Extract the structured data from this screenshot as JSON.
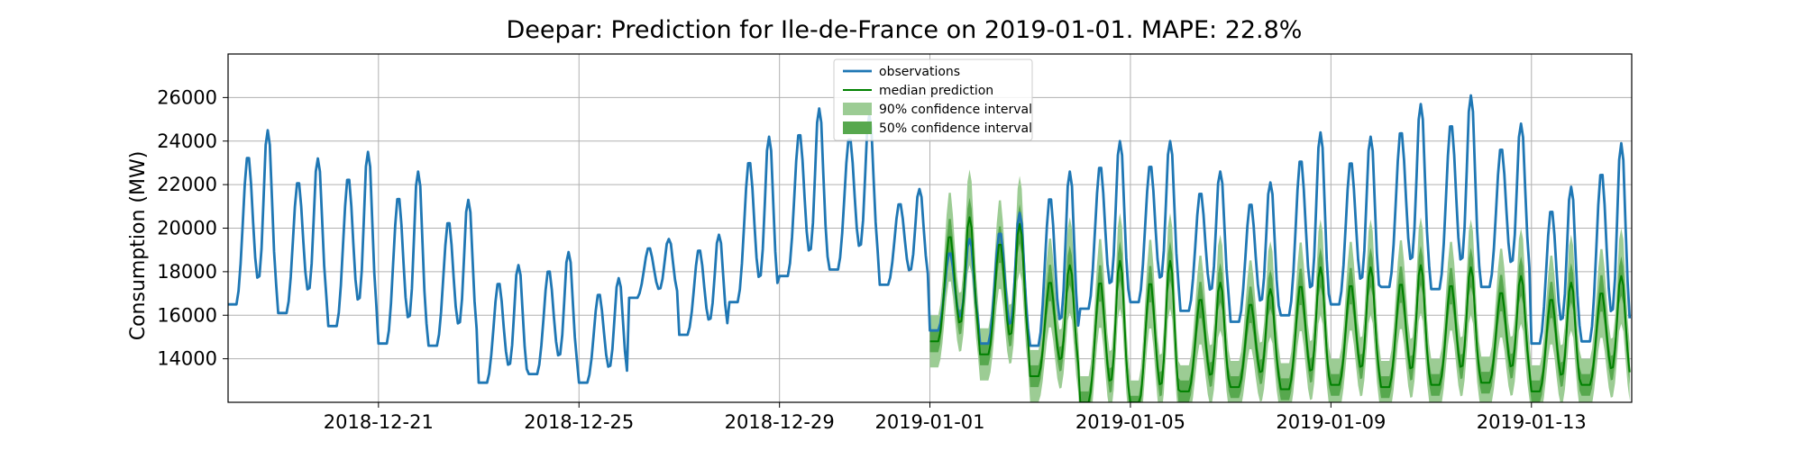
{
  "chart_data": {
    "type": "line",
    "title": "Deepar: Prediction for Ile-de-France on 2019-01-01. MAPE: 22.8%",
    "xlabel": "",
    "ylabel": "Consumption (MW)",
    "x_unit": "date",
    "xlim": [
      "2018-12-18",
      "2019-01-15"
    ],
    "ylim": [
      12000,
      28000
    ],
    "yticks": [
      14000,
      16000,
      18000,
      20000,
      22000,
      24000,
      26000
    ],
    "xticks": [
      "2018-12-21",
      "2018-12-25",
      "2018-12-29",
      "2019-01-01",
      "2019-01-05",
      "2019-01-09",
      "2019-01-13"
    ],
    "grid": true,
    "legend_position": "top-center",
    "legend": [
      {
        "label": "observations",
        "kind": "line",
        "color": "#1f77b4"
      },
      {
        "label": "median prediction",
        "kind": "line",
        "color": "#008000"
      },
      {
        "label": "90% confidence interval",
        "kind": "patch",
        "color": "#9ccc94"
      },
      {
        "label": "50% confidence interval",
        "kind": "patch",
        "color": "#57a84e"
      }
    ],
    "observations": {
      "color": "#1f77b4",
      "daily": [
        {
          "date": "2018-12-18",
          "min": 16500,
          "max": 24500
        },
        {
          "date": "2018-12-19",
          "min": 16100,
          "max": 23200
        },
        {
          "date": "2018-12-20",
          "min": 15500,
          "max": 23500
        },
        {
          "date": "2018-12-21",
          "min": 14700,
          "max": 22600
        },
        {
          "date": "2018-12-22",
          "min": 14600,
          "max": 21300
        },
        {
          "date": "2018-12-23",
          "min": 12900,
          "max": 18300
        },
        {
          "date": "2018-12-24",
          "min": 13300,
          "max": 18900
        },
        {
          "date": "2018-12-25",
          "min": 12900,
          "max": 17700
        },
        {
          "date": "2018-12-26",
          "min": 16800,
          "max": 19500
        },
        {
          "date": "2018-12-27",
          "min": 15100,
          "max": 19700
        },
        {
          "date": "2018-12-28",
          "min": 16600,
          "max": 24200
        },
        {
          "date": "2018-12-29",
          "min": 17800,
          "max": 25500
        },
        {
          "date": "2018-12-30",
          "min": 18100,
          "max": 25200
        },
        {
          "date": "2018-12-31",
          "min": 17400,
          "max": 21800
        },
        {
          "date": "2019-01-01",
          "min": 15300,
          "max": 19500
        },
        {
          "date": "2019-01-02",
          "min": 14700,
          "max": 20700
        },
        {
          "date": "2019-01-03",
          "min": 14600,
          "max": 22600
        },
        {
          "date": "2019-01-04",
          "min": 16300,
          "max": 24000
        },
        {
          "date": "2019-01-05",
          "min": 16600,
          "max": 24000
        },
        {
          "date": "2019-01-06",
          "min": 16200,
          "max": 22600
        },
        {
          "date": "2019-01-07",
          "min": 15700,
          "max": 22100
        },
        {
          "date": "2019-01-08",
          "min": 16000,
          "max": 24400
        },
        {
          "date": "2019-01-09",
          "min": 16500,
          "max": 24200
        },
        {
          "date": "2019-01-10",
          "min": 17300,
          "max": 25700
        },
        {
          "date": "2019-01-11",
          "min": 17200,
          "max": 26100
        },
        {
          "date": "2019-01-12",
          "min": 17300,
          "max": 24800
        },
        {
          "date": "2019-01-13",
          "min": 14700,
          "max": 21900
        },
        {
          "date": "2019-01-14",
          "min": 14800,
          "max": 23900
        }
      ]
    },
    "median_prediction": {
      "color": "#008000",
      "daily": [
        {
          "date": "2019-01-01",
          "min": 14800,
          "max": 20500
        },
        {
          "date": "2019-01-02",
          "min": 14200,
          "max": 20200
        },
        {
          "date": "2019-01-03",
          "min": 13200,
          "max": 18300
        },
        {
          "date": "2019-01-04",
          "min": 12000,
          "max": 18500
        },
        {
          "date": "2019-01-05",
          "min": 11800,
          "max": 18500
        },
        {
          "date": "2019-01-06",
          "min": 12500,
          "max": 17500
        },
        {
          "date": "2019-01-07",
          "min": 12700,
          "max": 17200
        },
        {
          "date": "2019-01-08",
          "min": 12600,
          "max": 18200
        },
        {
          "date": "2019-01-09",
          "min": 12800,
          "max": 18200
        },
        {
          "date": "2019-01-10",
          "min": 12700,
          "max": 18300
        },
        {
          "date": "2019-01-11",
          "min": 12800,
          "max": 18200
        },
        {
          "date": "2019-01-12",
          "min": 12900,
          "max": 17800
        },
        {
          "date": "2019-01-13",
          "min": 12500,
          "max": 17500
        },
        {
          "date": "2019-01-14",
          "min": 12800,
          "max": 17800
        }
      ]
    },
    "interval_90": {
      "color": "#9ccc94",
      "half_width": [
        1200,
        2200
      ]
    },
    "interval_50": {
      "color": "#57a84e",
      "half_width": [
        500,
        900
      ]
    }
  }
}
